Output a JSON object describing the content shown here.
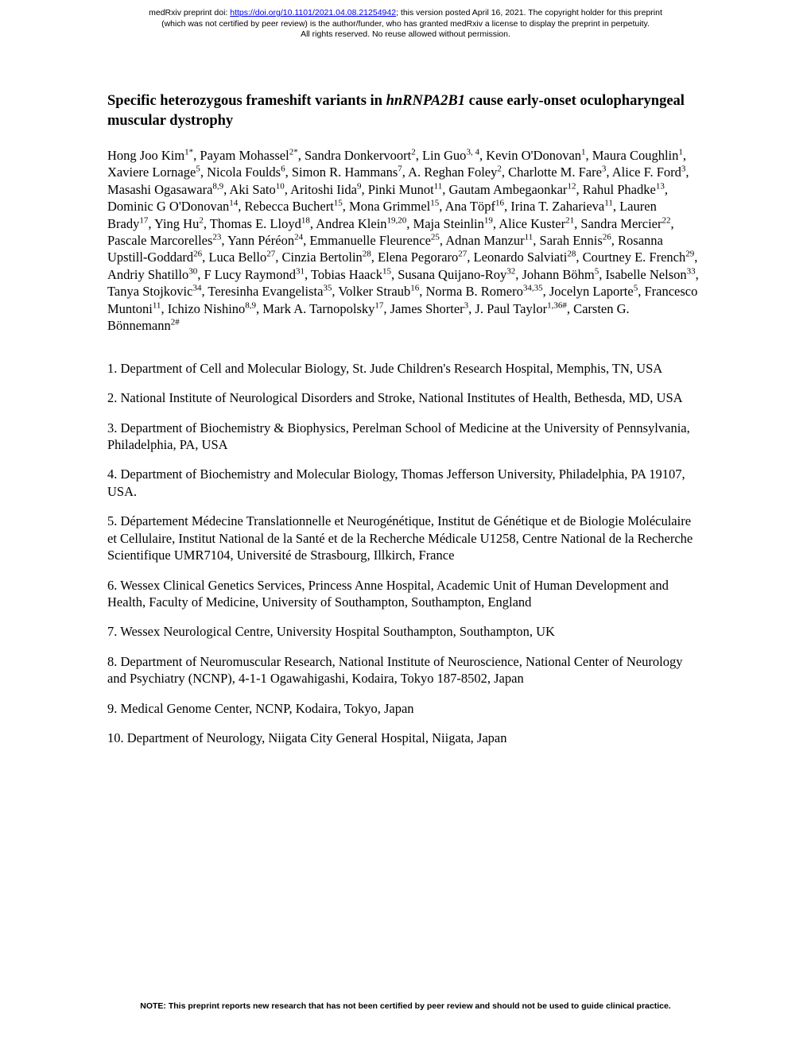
{
  "header": {
    "line1_prefix": "medRxiv preprint doi: ",
    "doi_url": "https://doi.org/10.1101/2021.04.08.21254942",
    "line1_suffix": "; this version posted April 16, 2021. The copyright holder for this preprint",
    "line2": "(which was not certified by peer review) is the author/funder, who has granted medRxiv a license to display the preprint in perpetuity.",
    "line3": "All rights reserved. No reuse allowed without permission."
  },
  "title": {
    "part1": "Specific heterozygous frameshift variants in ",
    "gene": "hnRNPA2B1",
    "part2": " cause early-onset oculopharyngeal muscular dystrophy"
  },
  "authors_html": "Hong Joo Kim<sup>1*</sup>, Payam Mohassel<sup>2*</sup>, Sandra Donkervoort<sup>2</sup>, Lin Guo<sup>3, 4</sup>, Kevin O'Donovan<sup>1</sup>, Maura Coughlin<sup>1</sup>, Xaviere Lornage<sup>5</sup>, Nicola Foulds<sup>6</sup>, Simon R. Hammans<sup>7</sup>, A. Reghan Foley<sup>2</sup>, Charlotte M. Fare<sup>3</sup>, Alice F. Ford<sup>3</sup>, Masashi Ogasawara<sup>8,9</sup>, Aki Sato<sup>10</sup>, Aritoshi Iida<sup>9</sup>, Pinki Munot<sup>11</sup>, Gautam Ambegaonkar<sup>12</sup>, Rahul Phadke<sup>13</sup>, Dominic G O'Donovan<sup>14</sup>, Rebecca Buchert<sup>15</sup>, Mona Grimmel<sup>15</sup>, Ana Töpf<sup>16</sup>, Irina T. Zaharieva<sup>11</sup>, Lauren Brady<sup>17</sup>, Ying Hu<sup>2</sup>, Thomas E. Lloyd<sup>18</sup>, Andrea Klein<sup>19,20</sup>, Maja Steinlin<sup>19</sup>, Alice Kuster<sup>21</sup>, Sandra Mercier<sup>22</sup>, Pascale Marcorelles<sup>23</sup>, Yann Péréon<sup>24</sup>, Emmanuelle Fleurence<sup>25</sup>, Adnan Manzur<sup>11</sup>, Sarah Ennis<sup>26</sup>, Rosanna Upstill-Goddard<sup>26</sup>, Luca Bello<sup>27</sup>, Cinzia Bertolin<sup>28</sup>, Elena Pegoraro<sup>27</sup>, Leonardo Salviati<sup>28</sup>, Courtney E. French<sup>29</sup>, Andriy Shatillo<sup>30</sup>, F Lucy Raymond<sup>31</sup>, Tobias Haack<sup>15</sup>, Susana Quijano-Roy<sup>32</sup>, Johann Böhm<sup>5</sup>, Isabelle Nelson<sup>33</sup>, Tanya Stojkovic<sup>34</sup>, Teresinha Evangelista<sup>35</sup>, Volker Straub<sup>16</sup>, Norma B. Romero<sup>34,35</sup>, Jocelyn Laporte<sup>5</sup>, Francesco Muntoni<sup>11</sup>, Ichizo Nishino<sup>8,9</sup>, Mark A. Tarnopolsky<sup>17</sup>, James Shorter<sup>3</sup>, J. Paul Taylor<sup>1,36#</sup>, Carsten G. Bönnemann<sup>2#</sup>",
  "affiliations": [
    "1. Department of Cell and Molecular Biology, St. Jude Children's Research Hospital, Memphis, TN, USA",
    "2. National Institute of Neurological Disorders and Stroke, National Institutes of Health, Bethesda, MD, USA",
    "3. Department of Biochemistry & Biophysics, Perelman School of Medicine at the University of Pennsylvania, Philadelphia, PA, USA",
    "4. Department of Biochemistry and Molecular Biology, Thomas Jefferson University, Philadelphia, PA 19107, USA.",
    "5. Département Médecine Translationnelle et Neurogénétique, Institut de Génétique et de Biologie Moléculaire et Cellulaire, Institut National de la Santé et de la Recherche Médicale U1258, Centre National de la Recherche Scientifique UMR7104, Université de Strasbourg, Illkirch, France",
    "6. Wessex Clinical Genetics Services, Princess Anne Hospital, Academic Unit of Human Development and Health, Faculty of Medicine, University of Southampton, Southampton, England",
    "7. Wessex Neurological Centre, University Hospital Southampton, Southampton, UK",
    "8. Department of Neuromuscular Research, National Institute of Neuroscience, National Center of Neurology and Psychiatry (NCNP), 4-1-1 Ogawahigashi, Kodaira, Tokyo 187-8502, Japan",
    "9. Medical Genome Center, NCNP, Kodaira, Tokyo, Japan",
    "10. Department of Neurology, Niigata City General Hospital, Niigata, Japan"
  ],
  "footer_note": "NOTE: This preprint reports new research that has not been certified by peer review and should not be used to guide clinical practice."
}
